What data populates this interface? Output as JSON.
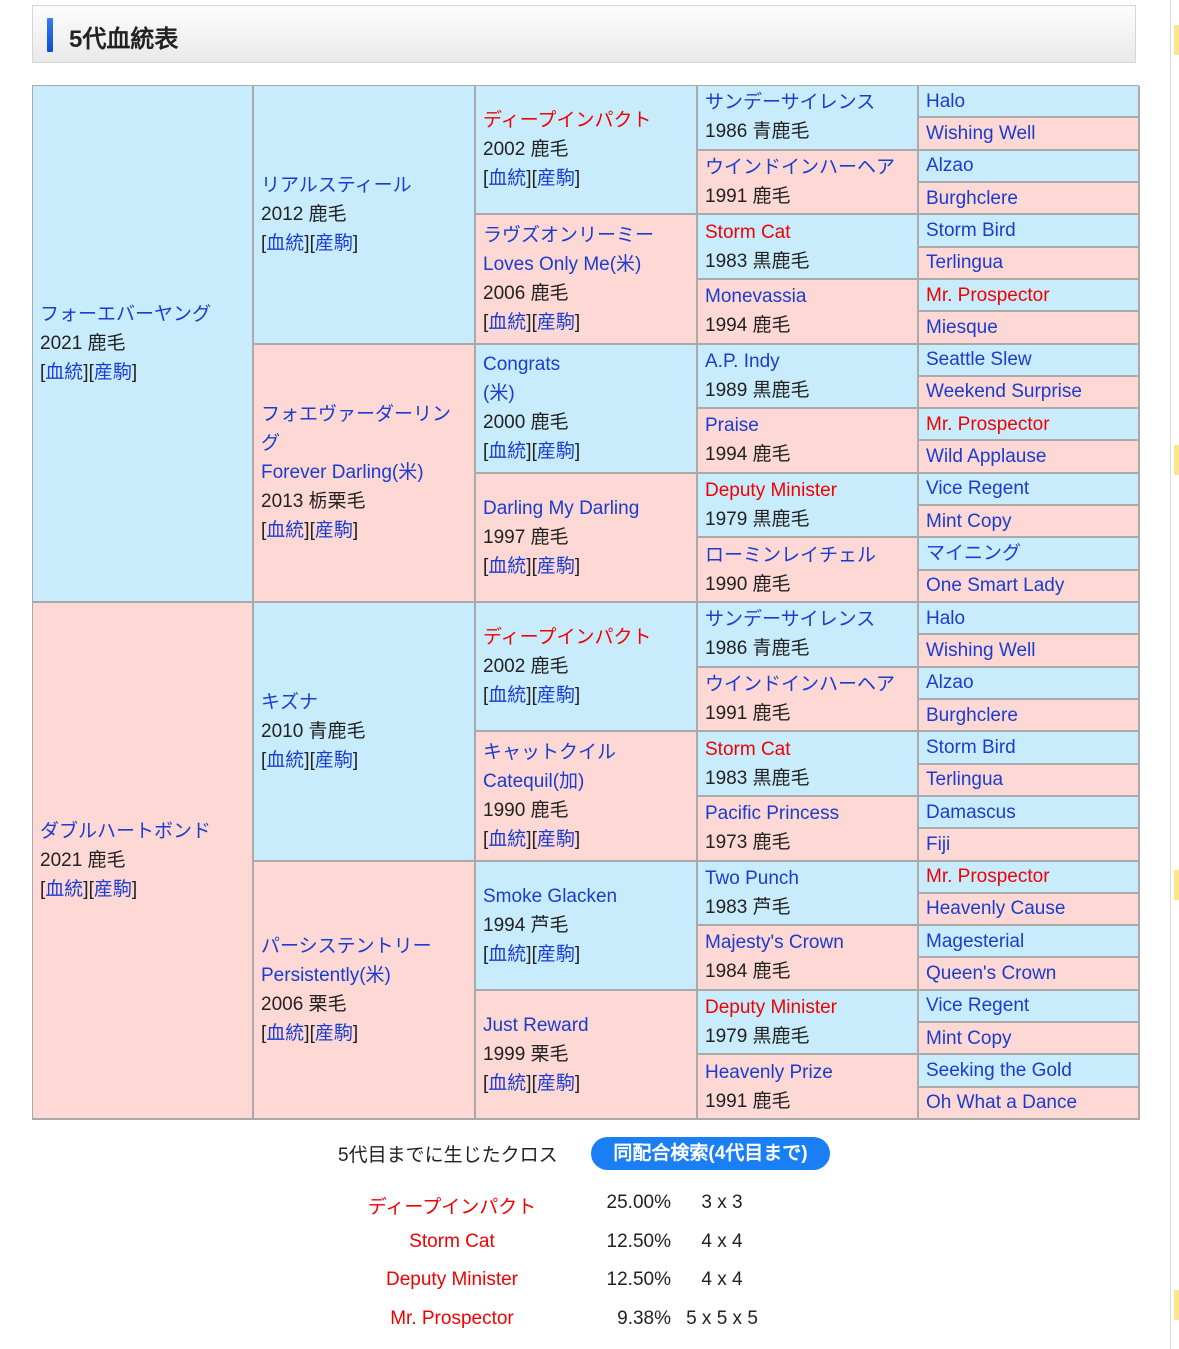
{
  "header": {
    "title": "5代血統表"
  },
  "links": {
    "pedigree": "血統",
    "offspring": "産駒"
  },
  "gen1": [
    {
      "name": "フォーエバーヤング",
      "info": "2021 鹿毛"
    },
    {
      "name": "ダブルハートボンド",
      "info": "2021 鹿毛"
    }
  ],
  "gen2": [
    {
      "name": "リアルスティール",
      "info": "2012 鹿毛"
    },
    {
      "name": "フォエヴァーダーリング",
      "en": "Forever Darling(米)",
      "info": "2013 栃栗毛"
    },
    {
      "name": "キズナ",
      "info": "2010 青鹿毛"
    },
    {
      "name": "パーシステントリー",
      "en": "Persistently(米)",
      "info": "2006 栗毛"
    }
  ],
  "gen3": [
    {
      "name": "ディープインパクト",
      "info": "2002 鹿毛",
      "red": true
    },
    {
      "name": "ラヴズオンリーミー",
      "en": "Loves Only Me(米)",
      "info": "2006 鹿毛"
    },
    {
      "name": "Congrats",
      "en": "(米)",
      "info": "2000 鹿毛"
    },
    {
      "name": "Darling My Darling",
      "info": "1997 鹿毛"
    },
    {
      "name": "ディープインパクト",
      "info": "2002 鹿毛",
      "red": true
    },
    {
      "name": "キャットクイル",
      "en": "Catequil(加)",
      "info": "1990 鹿毛"
    },
    {
      "name": "Smoke Glacken",
      "info": "1994 芦毛"
    },
    {
      "name": "Just Reward",
      "info": "1999 栗毛"
    }
  ],
  "gen4": [
    {
      "name": "サンデーサイレンス",
      "info": "1986 青鹿毛"
    },
    {
      "name": "ウインドインハーヘア",
      "info": "1991 鹿毛"
    },
    {
      "name": "Storm Cat",
      "info": "1983 黒鹿毛",
      "red": true
    },
    {
      "name": "Monevassia",
      "info": "1994 鹿毛"
    },
    {
      "name": "A.P. Indy",
      "info": "1989 黒鹿毛"
    },
    {
      "name": "Praise",
      "info": "1994 鹿毛"
    },
    {
      "name": "Deputy Minister",
      "info": "1979 黒鹿毛",
      "red": true
    },
    {
      "name": "ローミンレイチェル",
      "info": "1990 鹿毛"
    },
    {
      "name": "サンデーサイレンス",
      "info": "1986 青鹿毛"
    },
    {
      "name": "ウインドインハーヘア",
      "info": "1991 鹿毛"
    },
    {
      "name": "Storm Cat",
      "info": "1983 黒鹿毛",
      "red": true
    },
    {
      "name": "Pacific Princess",
      "info": "1973 鹿毛"
    },
    {
      "name": "Two Punch",
      "info": "1983 芦毛"
    },
    {
      "name": "Majesty's Crown",
      "info": "1984 鹿毛"
    },
    {
      "name": "Deputy Minister",
      "info": "1979 黒鹿毛",
      "red": true
    },
    {
      "name": "Heavenly Prize",
      "info": "1991 鹿毛"
    }
  ],
  "gen5": [
    {
      "name": "Halo"
    },
    {
      "name": "Wishing Well"
    },
    {
      "name": "Alzao"
    },
    {
      "name": "Burghclere"
    },
    {
      "name": "Storm Bird"
    },
    {
      "name": "Terlingua"
    },
    {
      "name": "Mr. Prospector",
      "red": true
    },
    {
      "name": "Miesque"
    },
    {
      "name": "Seattle Slew"
    },
    {
      "name": "Weekend Surprise"
    },
    {
      "name": "Mr. Prospector",
      "red": true
    },
    {
      "name": "Wild Applause"
    },
    {
      "name": "Vice Regent"
    },
    {
      "name": "Mint Copy"
    },
    {
      "name": "マイニング"
    },
    {
      "name": "One Smart Lady"
    },
    {
      "name": "Halo"
    },
    {
      "name": "Wishing Well"
    },
    {
      "name": "Alzao"
    },
    {
      "name": "Burghclere"
    },
    {
      "name": "Storm Bird"
    },
    {
      "name": "Terlingua"
    },
    {
      "name": "Damascus"
    },
    {
      "name": "Fiji"
    },
    {
      "name": "Mr. Prospector",
      "red": true
    },
    {
      "name": "Heavenly Cause"
    },
    {
      "name": "Magesterial"
    },
    {
      "name": "Queen's Crown"
    },
    {
      "name": "Vice Regent"
    },
    {
      "name": "Mint Copy"
    },
    {
      "name": "Seeking the Gold"
    },
    {
      "name": "Oh What a Dance"
    }
  ],
  "crosses": {
    "heading": "5代目までに生じたクロス",
    "search_button": "同配合検索(4代目まで)",
    "rows": [
      {
        "name": "ディープインパクト",
        "pct": "25.00%",
        "gen": "3 x 3"
      },
      {
        "name": "Storm Cat",
        "pct": "12.50%",
        "gen": "4 x 4"
      },
      {
        "name": "Deputy Minister",
        "pct": "12.50%",
        "gen": "4 x 4"
      },
      {
        "name": "Mr. Prospector",
        "pct": "9.38%",
        "gen": "5 x 5 x 5"
      }
    ]
  },
  "colors": {
    "sire_bg": "#c9ecfc",
    "dam_bg": "#fdd8d4",
    "link": "#1a3ccf",
    "cross_red": "#f20000",
    "button": "#1a7ef5"
  }
}
